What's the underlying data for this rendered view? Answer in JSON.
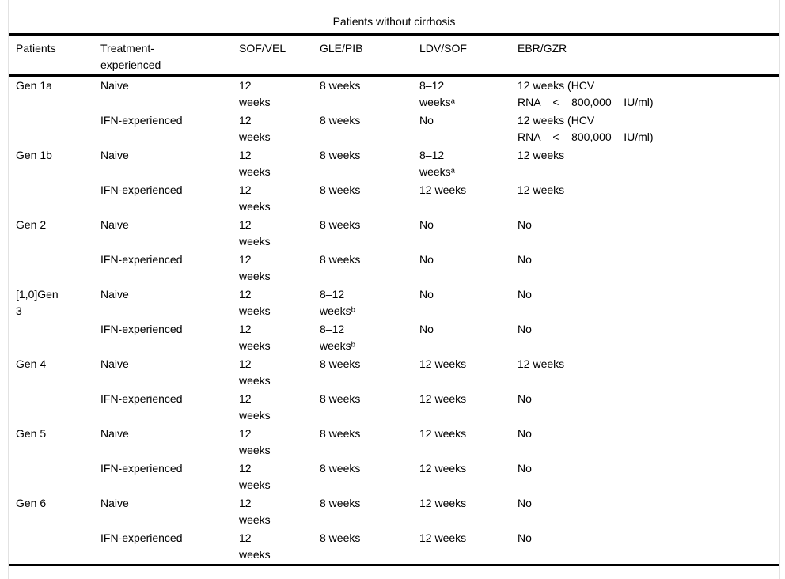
{
  "table": {
    "title": "Patients without cirrhosis",
    "footnote_markers": [
      "a",
      "b"
    ],
    "columns": [
      "Patients",
      "Treatment-\nexperienced",
      "SOF/VEL",
      "GLE/PIB",
      "LDV/SOF",
      "EBR/GZR"
    ],
    "rows": [
      [
        "Gen 1a",
        "Naive",
        "12\nweeks",
        "8 weeks",
        "8–12\nweeksᵃ",
        "12 weeks (HCV\nRNA    <    800,000    IU/ml)"
      ],
      [
        "",
        "IFN-experienced",
        "12\nweeks",
        "8 weeks",
        "No",
        "12 weeks (HCV\nRNA    <    800,000    IU/ml)"
      ],
      [
        "Gen 1b",
        "Naive",
        "12\nweeks",
        "8 weeks",
        "8–12\nweeksᵃ",
        "12 weeks"
      ],
      [
        "",
        "IFN-experienced",
        "12\nweeks",
        "8 weeks",
        "12 weeks",
        "12 weeks"
      ],
      [
        "Gen 2",
        "Naive",
        "12\nweeks",
        "8 weeks",
        "No",
        "No"
      ],
      [
        "",
        "IFN-experienced",
        "12\nweeks",
        "8 weeks",
        "No",
        "No"
      ],
      [
        "[1,0]Gen\n3",
        "Naive",
        "12\nweeks",
        "8–12\nweeksᵇ",
        "No",
        "No"
      ],
      [
        "",
        "IFN-experienced",
        "12\nweeks",
        "8–12\nweeksᵇ",
        "No",
        "No"
      ],
      [
        "Gen 4",
        "Naive",
        "12\nweeks",
        "8 weeks",
        "12 weeks",
        "12 weeks"
      ],
      [
        "",
        "IFN-experienced",
        "12\nweeks",
        "8 weeks",
        "12 weeks",
        "No"
      ],
      [
        "Gen 5",
        "Naive",
        "12\nweeks",
        "8 weeks",
        "12 weeks",
        "No"
      ],
      [
        "",
        "IFN-experienced",
        "12\nweeks",
        "8 weeks",
        "12 weeks",
        "No"
      ],
      [
        "Gen 6",
        "Naive",
        "12\nweeks",
        "8 weeks",
        "12 weeks",
        "No"
      ],
      [
        "",
        "IFN-experienced",
        "12\nweeks",
        "8 weeks",
        "12 weeks",
        "No"
      ]
    ],
    "colors": {
      "rule_black": "#000000",
      "frame_gray": "#e2e2e2",
      "background": "#ffffff"
    }
  }
}
